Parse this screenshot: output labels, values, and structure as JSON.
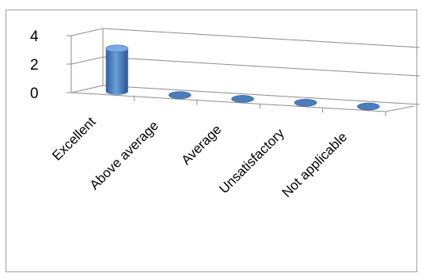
{
  "chart_data": {
    "type": "bar",
    "style": "3d-cylinder",
    "categories": [
      "Excellent",
      "Above average",
      "Average",
      "Unsatisfactory",
      "Not applicable"
    ],
    "values": [
      3,
      0,
      0,
      0,
      0
    ],
    "ylim": [
      0,
      4
    ],
    "y_ticks": [
      "0",
      "2",
      "4"
    ],
    "grid": true,
    "legend": "none",
    "bar_color": "#4a7ebb"
  }
}
